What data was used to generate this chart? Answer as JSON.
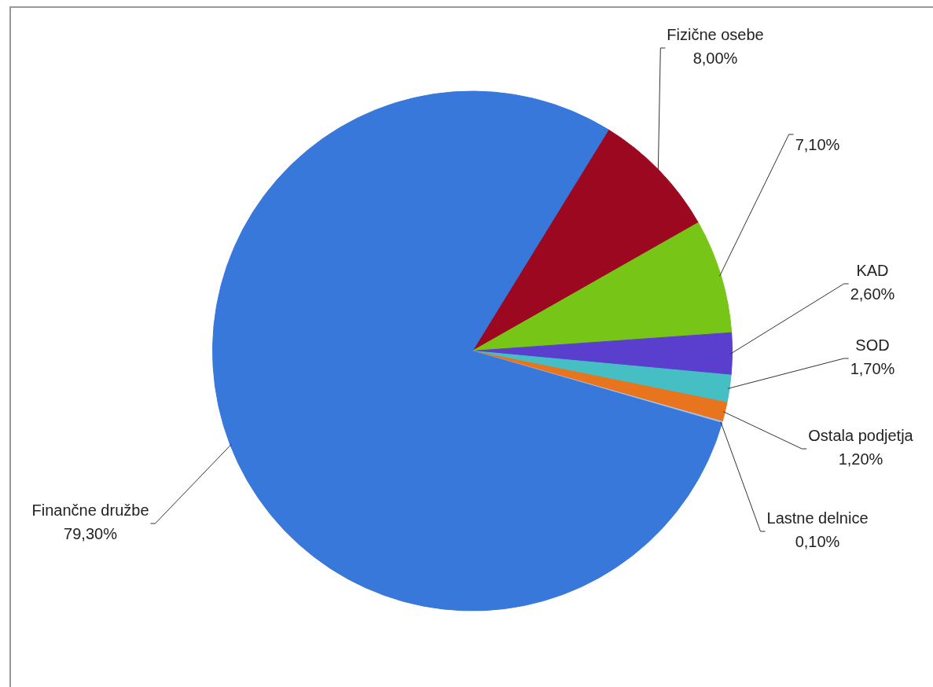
{
  "chart_data": {
    "type": "pie",
    "categories": [
      "Fizične osebe",
      null,
      "KAD",
      "SOD",
      "Ostala podjetja",
      "Lastne delnice",
      "Finančne družbe"
    ],
    "values": [
      8.0,
      7.1,
      2.6,
      1.7,
      1.2,
      0.1,
      79.3
    ],
    "value_labels": [
      "8,00%",
      "7,10%",
      "2,60%",
      "1,70%",
      "1,20%",
      "0,10%",
      "79,30%"
    ],
    "colors": [
      "#9b0820",
      "#77c516",
      "#5a3fcf",
      "#45bfc4",
      "#e8741e",
      "#a8c4e8",
      "#3878db"
    ],
    "legend": false
  }
}
